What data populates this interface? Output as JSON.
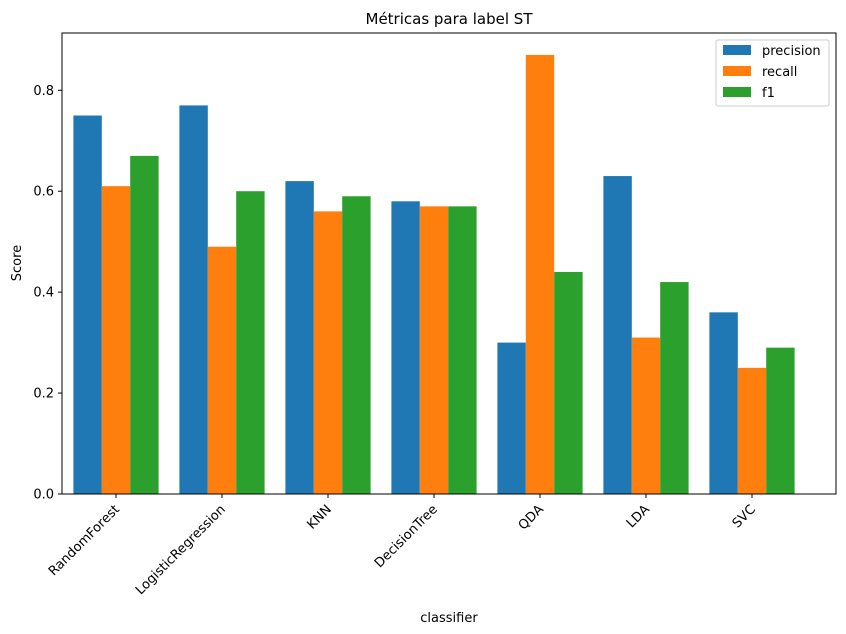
{
  "chart_data": {
    "type": "bar",
    "title": "Métricas para label ST",
    "xlabel": "classifier",
    "ylabel": "Score",
    "categories": [
      "RandomForest",
      "LogisticRegression",
      "KNN",
      "DecisionTree",
      "QDA",
      "LDA",
      "SVC"
    ],
    "series": [
      {
        "name": "precision",
        "color": "#1f77b4",
        "values": [
          0.75,
          0.77,
          0.62,
          0.58,
          0.3,
          0.63,
          0.36
        ]
      },
      {
        "name": "recall",
        "color": "#ff7f0e",
        "values": [
          0.61,
          0.49,
          0.56,
          0.57,
          0.87,
          0.31,
          0.25
        ]
      },
      {
        "name": "f1",
        "color": "#2ca02c",
        "values": [
          0.67,
          0.6,
          0.59,
          0.57,
          0.44,
          0.42,
          0.29
        ]
      }
    ],
    "ylim": [
      0,
      0.9135
    ],
    "yticks": [
      0.0,
      0.2,
      0.4,
      0.6,
      0.8
    ],
    "ytick_labels": [
      "0.0",
      "0.2",
      "0.4",
      "0.6",
      "0.8"
    ],
    "grid": false,
    "legend_position": "top-right"
  }
}
